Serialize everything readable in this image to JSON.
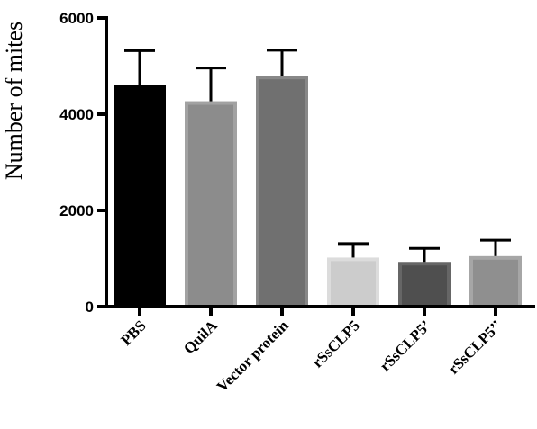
{
  "chart_data": {
    "type": "bar",
    "title": "",
    "xlabel": "",
    "ylabel": "Number of mites",
    "ylim": [
      0,
      6000
    ],
    "yticks": [
      0,
      2000,
      4000,
      6000
    ],
    "categories": [
      "PBS",
      "QuilA",
      "Vector protein",
      "rSsCLP5",
      "rSsCLP5’",
      "rSsCLP5’’"
    ],
    "values": [
      4600,
      4270,
      4800,
      1020,
      930,
      1050
    ],
    "errors": [
      720,
      690,
      530,
      290,
      280,
      330
    ],
    "colors": [
      "#000000",
      "#8c8c8c",
      "#707070",
      "#cccccc",
      "#4f4f4f",
      "#8f8f8f"
    ],
    "edge_colors": [
      "#000000",
      "#a2a2a2",
      "#888888",
      "#dcdcdc",
      "#666666",
      "#a6a6a6"
    ],
    "grid": false,
    "legend": "none"
  }
}
